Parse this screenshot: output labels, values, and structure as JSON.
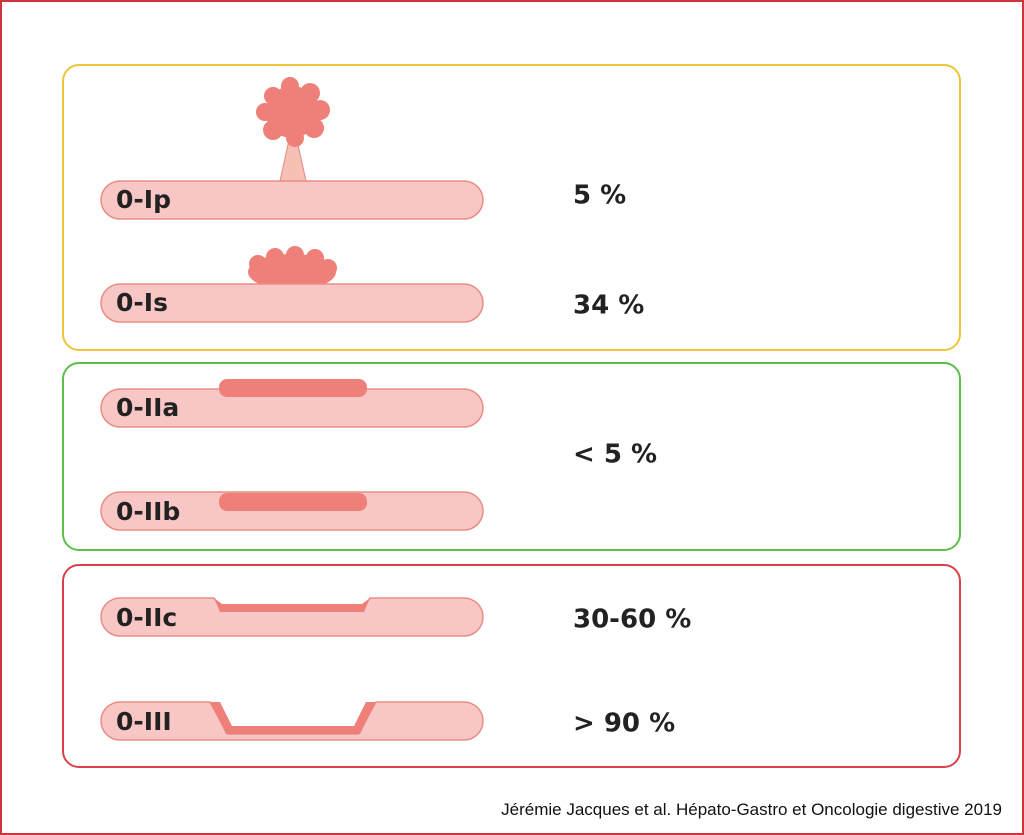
{
  "groups": [
    {
      "items": [
        {
          "label": "0-Ip",
          "rate": "5 %"
        },
        {
          "label": "0-Is",
          "rate": "34 %"
        }
      ]
    },
    {
      "items": [
        {
          "label": "0-IIa"
        },
        {
          "label": "0-IIb"
        }
      ],
      "rate": "< 5 %"
    },
    {
      "items": [
        {
          "label": "0-IIc",
          "rate": "30-60 %"
        },
        {
          "label": "0-III",
          "rate": "> 90 %"
        }
      ]
    }
  ],
  "citation": "Jérémie Jacques et al. Hépato-Gastro et Oncologie digestive  2019"
}
